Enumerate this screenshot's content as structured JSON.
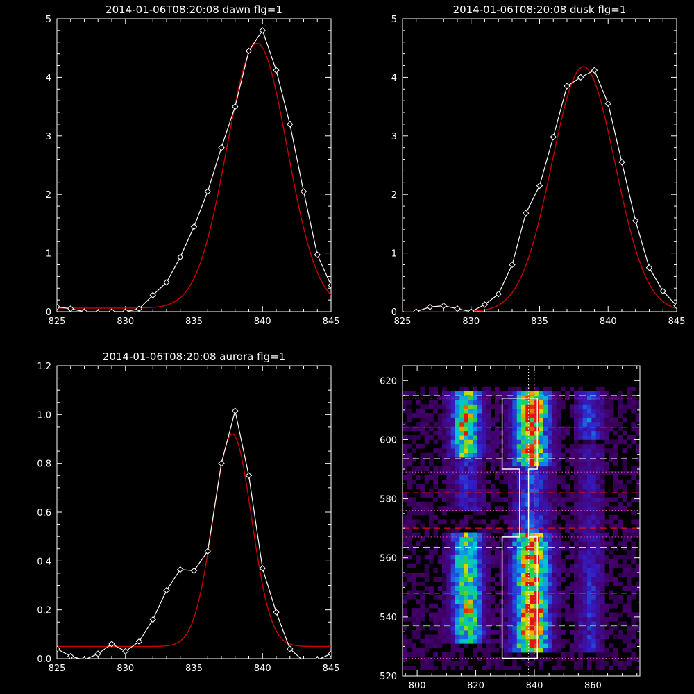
{
  "colors": {
    "background": "#000000",
    "axes": "#ffffff",
    "data_line": "#ffffff",
    "fit_line": "#cc0000",
    "green_guide": "#22dd22",
    "red_guide": "#dd1111",
    "white_guide": "#ffffff",
    "magenta_guide": "#dd44aa"
  },
  "chart_data": [
    {
      "type": "line",
      "title": "2014-01-06T08:20:08 dawn flg=1",
      "xlim": [
        825,
        845
      ],
      "ylim": [
        0,
        5
      ],
      "xticks": [
        825,
        830,
        835,
        840,
        845
      ],
      "yticks": [
        0,
        1,
        2,
        3,
        4,
        5
      ],
      "series": [
        {
          "role": "data",
          "color": "#ffffff",
          "marker": "diamond",
          "x": [
            825,
            826,
            827,
            828,
            829,
            830,
            831,
            832,
            833,
            834,
            835,
            836,
            837,
            838,
            839,
            840,
            841,
            842,
            843,
            844,
            845
          ],
          "y": [
            0.08,
            0.05,
            0.0,
            -0.02,
            0.0,
            0.0,
            0.05,
            0.28,
            0.5,
            0.93,
            1.45,
            2.05,
            2.8,
            3.5,
            4.45,
            4.8,
            4.12,
            3.2,
            2.05,
            0.97,
            0.45
          ]
        },
        {
          "role": "fit",
          "color": "#cc0000",
          "gaussian": {
            "amplitude": 4.52,
            "center": 839.6,
            "sigma": 2.2,
            "baseline": 0.06
          }
        }
      ]
    },
    {
      "type": "line",
      "title": "2014-01-06T08:20:08 dusk flg=1",
      "xlim": [
        825,
        845
      ],
      "ylim": [
        0,
        5
      ],
      "xticks": [
        825,
        830,
        835,
        840,
        845
      ],
      "yticks": [
        0,
        1,
        2,
        3,
        4,
        5
      ],
      "series": [
        {
          "role": "data",
          "color": "#ffffff",
          "marker": "diamond",
          "x": [
            825,
            826,
            827,
            828,
            829,
            830,
            831,
            832,
            833,
            834,
            835,
            836,
            837,
            838,
            839,
            840,
            841,
            842,
            843,
            844,
            845
          ],
          "y": [
            -0.03,
            0.0,
            0.08,
            0.1,
            0.05,
            0.0,
            0.12,
            0.3,
            0.8,
            1.68,
            2.15,
            2.98,
            3.85,
            4.0,
            4.12,
            3.55,
            2.55,
            1.55,
            0.75,
            0.35,
            0.1
          ]
        },
        {
          "role": "fit",
          "color": "#cc0000",
          "gaussian": {
            "amplitude": 4.18,
            "center": 838.2,
            "sigma": 2.3,
            "baseline": 0.0
          }
        }
      ]
    },
    {
      "type": "line",
      "title": "2014-01-06T08:20:08 aurora flg=1",
      "xlim": [
        825,
        845
      ],
      "ylim": [
        0,
        1.2
      ],
      "xticks": [
        825,
        830,
        835,
        840,
        845
      ],
      "yticks": [
        0.0,
        0.2,
        0.4,
        0.6,
        0.8,
        1.0,
        1.2
      ],
      "series": [
        {
          "role": "data",
          "color": "#ffffff",
          "marker": "diamond",
          "x": [
            825,
            826,
            827,
            828,
            829,
            830,
            831,
            832,
            833,
            834,
            835,
            836,
            837,
            838,
            839,
            840,
            841,
            842,
            843,
            844,
            845
          ],
          "y": [
            0.04,
            0.01,
            -0.005,
            0.02,
            0.06,
            0.03,
            0.07,
            0.16,
            0.28,
            0.365,
            0.36,
            0.44,
            0.8,
            1.015,
            0.75,
            0.37,
            0.19,
            0.04,
            -0.01,
            -0.005,
            0.02
          ]
        },
        {
          "role": "fit",
          "color": "#cc0000",
          "gaussian": {
            "amplitude": 0.87,
            "center": 837.8,
            "sigma": 1.4,
            "baseline": 0.05
          }
        }
      ]
    },
    {
      "type": "heatmap",
      "title": "",
      "xlim": [
        795,
        876
      ],
      "ylim": [
        520,
        625
      ],
      "xticks": [
        800,
        820,
        840,
        860
      ],
      "yticks": [
        520,
        540,
        560,
        580,
        600,
        620
      ],
      "colormap": "rainbow",
      "emission_bands": [
        {
          "x_center": 817,
          "x_width": 3.5,
          "y_segments": [
            [
              593,
              616,
              0.75
            ],
            [
              575,
              593,
              0.25
            ],
            [
              530,
              568,
              0.7
            ]
          ]
        },
        {
          "x_center": 839,
          "x_width": 4.0,
          "y_segments": [
            [
              590,
              616,
              0.95
            ],
            [
              568,
              590,
              0.35
            ],
            [
              527,
              568,
              1.0
            ]
          ]
        },
        {
          "x_center": 859,
          "x_width": 3.0,
          "y_segments": [
            [
              600,
              616,
              0.35
            ],
            [
              560,
              598,
              0.18
            ],
            [
              528,
              560,
              0.25
            ]
          ]
        }
      ],
      "hot_spots": [
        [
          840,
          610,
          0.9
        ],
        [
          840,
          541,
          1.0
        ],
        [
          818,
          542,
          0.55
        ],
        [
          817,
          607,
          0.55
        ]
      ],
      "boxes": [
        {
          "color": "#ffffff",
          "polygon": [
            [
              829,
              614
            ],
            [
              841,
              614
            ],
            [
              841,
              590
            ],
            [
              838,
              590
            ],
            [
              838,
              567
            ],
            [
              841,
              567
            ],
            [
              841,
              526
            ],
            [
              829,
              526
            ],
            [
              829,
              567
            ],
            [
              835,
              567
            ],
            [
              835,
              590
            ],
            [
              829,
              590
            ]
          ]
        }
      ],
      "vertical_lines": [
        {
          "x": 838,
          "style": "dotted",
          "color": "#ffffff"
        },
        {
          "x": 840,
          "style": "dotted",
          "color": "#dd44aa"
        }
      ],
      "horizontal_lines": [
        {
          "y": 615,
          "style": "dashed",
          "color": "#22dd22"
        },
        {
          "y": 604,
          "style": "dashed",
          "color": "#22dd22"
        },
        {
          "y": 593.5,
          "style": "dashed",
          "color": "#ffffff"
        },
        {
          "y": 582,
          "style": "dashed",
          "color": "#dd1111"
        },
        {
          "y": 570,
          "style": "dashed",
          "color": "#dd1111"
        },
        {
          "y": 563.5,
          "style": "dashed",
          "color": "#ffffff"
        },
        {
          "y": 548,
          "style": "dashed",
          "color": "#22dd22"
        },
        {
          "y": 537,
          "style": "dashed",
          "color": "#22dd22"
        },
        {
          "y": 614,
          "style": "dotted",
          "color": "#dd44aa"
        },
        {
          "y": 589,
          "style": "dotted",
          "color": "#dd44aa"
        },
        {
          "y": 576,
          "style": "dotted",
          "color": "#dd44aa"
        },
        {
          "y": 567,
          "style": "dotted",
          "color": "#dd44aa"
        },
        {
          "y": 526,
          "style": "dotted",
          "color": "#dd44aa"
        }
      ]
    }
  ]
}
